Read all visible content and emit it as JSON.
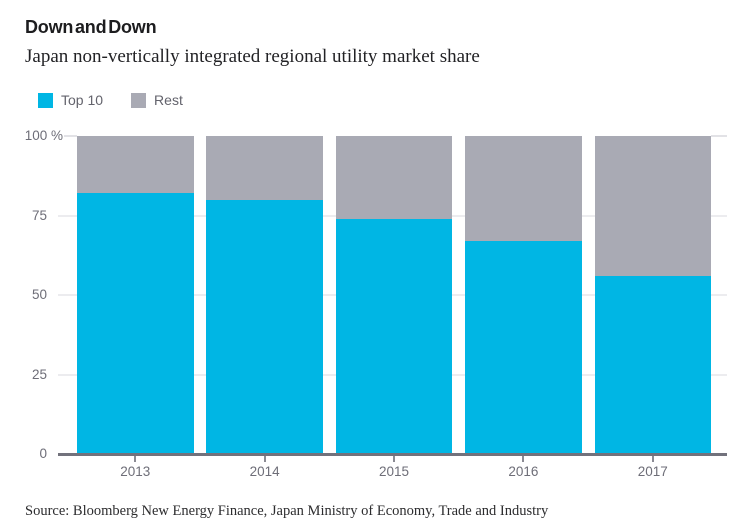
{
  "header": {
    "title": "Down and Down",
    "subtitle": "Japan non-vertically integrated regional utility market share"
  },
  "legend": [
    {
      "label": "Top 10",
      "color": "#00b6e4"
    },
    {
      "label": "Rest",
      "color": "#a9aab4"
    }
  ],
  "source": "Source: Bloomberg New Energy Finance, Japan Ministry of Economy, Trade and Industry",
  "colors": {
    "top10": "#00b6e4",
    "rest": "#a9aab4",
    "gridline": "#ececef",
    "axis_line": "#72727c",
    "tick_text": "#6e6e78",
    "title_text": "#1d1d1f"
  },
  "chart_data": {
    "type": "bar",
    "stacked": true,
    "title": "Down and Down",
    "subtitle": "Japan non-vertically integrated regional utility market share",
    "categories": [
      "2013",
      "2014",
      "2015",
      "2016",
      "2017"
    ],
    "series": [
      {
        "name": "Top 10",
        "color": "#00b6e4",
        "values": [
          82,
          80,
          74,
          67,
          56
        ]
      },
      {
        "name": "Rest",
        "color": "#a9aab4",
        "values": [
          18,
          20,
          26,
          33,
          44
        ]
      }
    ],
    "unit": "%",
    "ylim": [
      0,
      100
    ],
    "yticks": [
      {
        "label": "100 %",
        "value": 100
      },
      {
        "label": "75",
        "value": 75
      },
      {
        "label": "50",
        "value": 50
      },
      {
        "label": "25",
        "value": 25
      },
      {
        "label": "0",
        "value": 0
      }
    ],
    "grid": true,
    "legend_position": "top-left",
    "xlabel": "",
    "ylabel": "%"
  }
}
